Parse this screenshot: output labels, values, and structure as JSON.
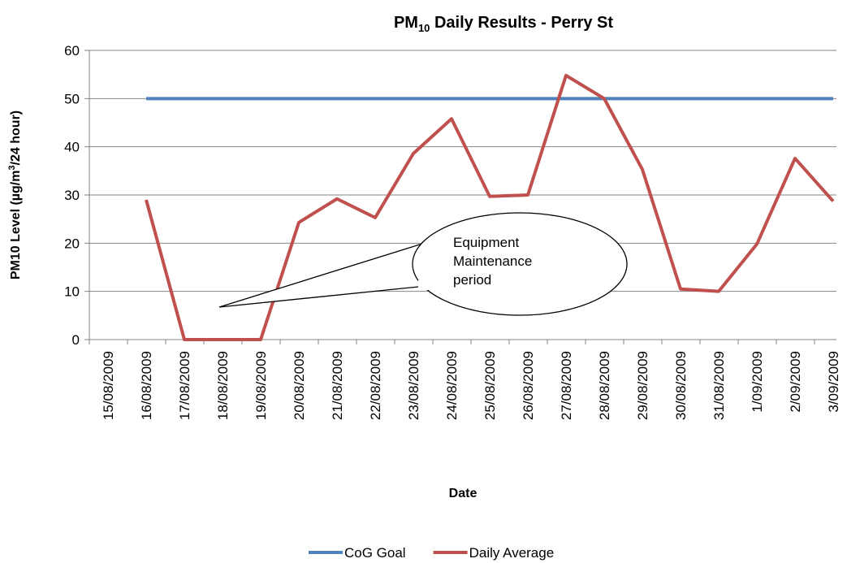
{
  "chart_data": {
    "type": "line",
    "title": {
      "main": "PM",
      "subscript": "10",
      "rest": " Daily Results - Perry St"
    },
    "x_label": "Date",
    "y_label": {
      "main": "PM10 Level (µg/m",
      "superscript": "3",
      "rest": "/24 hour)"
    },
    "annotation": [
      "Equipment",
      "Maintenance",
      "period"
    ],
    "categories": [
      "15/08/2009",
      "16/08/2009",
      "17/08/2009",
      "18/08/2009",
      "19/08/2009",
      "20/08/2009",
      "21/08/2009",
      "22/08/2009",
      "23/08/2009",
      "24/08/2009",
      "25/08/2009",
      "26/08/2009",
      "27/08/2009",
      "28/08/2009",
      "29/08/2009",
      "30/08/2009",
      "31/08/2009",
      "1/09/2009",
      "2/09/2009",
      "3/09/2009"
    ],
    "series": [
      {
        "name": "CoG Goal",
        "color": "#4f81bd",
        "values": [
          null,
          50,
          50,
          50,
          50,
          50,
          50,
          50,
          50,
          50,
          50,
          50,
          50,
          50,
          50,
          50,
          50,
          50,
          50,
          50
        ]
      },
      {
        "name": "Daily Average",
        "color": "#c0504d",
        "values": [
          null,
          29,
          0,
          0,
          0,
          24.3,
          29.2,
          25.3,
          38.6,
          45.8,
          29.7,
          30,
          54.8,
          50,
          35.3,
          10.5,
          10,
          19.8,
          37.6,
          28.7
        ]
      }
    ],
    "ylim": [
      0,
      60
    ],
    "yticks": [
      0,
      10,
      20,
      30,
      40,
      50,
      60
    ],
    "grid": true,
    "legend": "bottom"
  }
}
